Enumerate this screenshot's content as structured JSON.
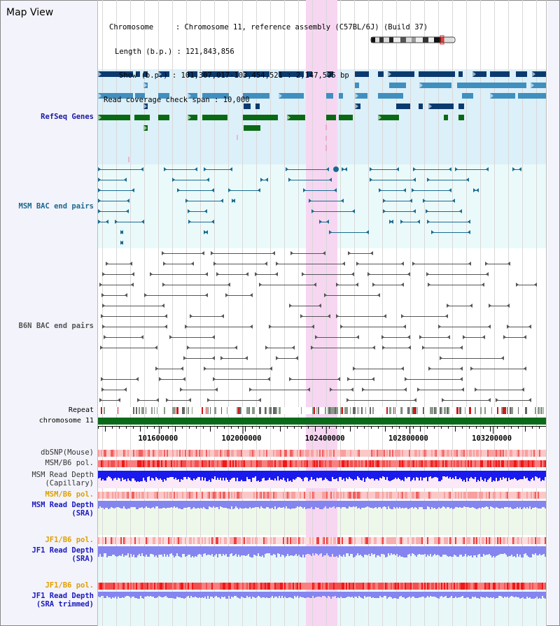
{
  "title": "Map View",
  "info": {
    "chromosome_label": "Chromosome",
    "chromosome_value": "Chromosome 11, reference assembly (C57BL/6J) (Build 37)",
    "length_label": "Length (b.p.)",
    "length_value": "121,843,856",
    "show_label": "Show (b.p.)",
    "show_value": "101,307,017-103,454,521 : 2,147,505 bp",
    "coverage_label": "Read coverage check span",
    "coverage_value": "10,000"
  },
  "tracks": {
    "refseq": "RefSeq Genes",
    "msm_bac": "MSM BAC end pairs",
    "b6n_bac": "B6N BAC end pairs",
    "repeat": "Repeat",
    "chromosome": "chromosome 11",
    "dbsnp": "dbSNP(Mouse)",
    "msm_b6_pol": "MSM/B6 pol.",
    "msm_depth_cap_1": "MSM Read Depth",
    "msm_depth_cap_2": "(Capillary)",
    "msm_b6_pol_2": "MSM/B6 pol.",
    "msm_depth_sra_1": "MSM Read Depth",
    "msm_depth_sra_2": "(SRA)",
    "jf1_b6_pol": "JF1/B6 pol.",
    "jf1_depth_sra_1": "JF1 Read Depth",
    "jf1_depth_sra_2": "(SRA)",
    "jf1_b6_pol_2": "JF1/B6 pol.",
    "jf1_depth_trim_1": "JF1 Read Depth",
    "jf1_depth_trim_2": "(SRA trimmed)"
  },
  "axis": {
    "ticks": [
      "101600000",
      "102000000",
      "102400000",
      "102800000",
      "103200000"
    ],
    "range": [
      101307017,
      103454521
    ]
  },
  "colors": {
    "refseq_bg": "#dcf0fa",
    "bac_bg": "#eafafa",
    "highlight": "#f7d6f2",
    "gene_dark": "#0a3a6e",
    "gene_mid": "#3f8fbf",
    "gene_green": "#0a6a14",
    "msm_bac": "#1a6a90",
    "b6n_bac": "#555555",
    "depth_cap": "#1a1aee",
    "depth_sra": "#8585f0"
  }
}
